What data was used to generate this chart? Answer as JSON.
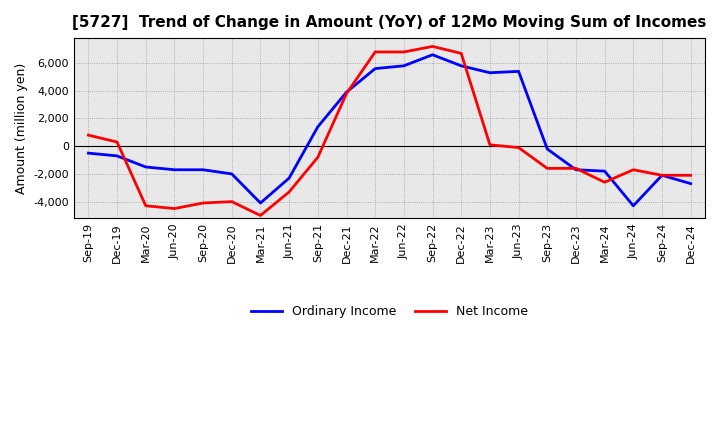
{
  "title": "[5727]  Trend of Change in Amount (YoY) of 12Mo Moving Sum of Incomes",
  "ylabel": "Amount (million yen)",
  "labels": [
    "Sep-19",
    "Dec-19",
    "Mar-20",
    "Jun-20",
    "Sep-20",
    "Dec-20",
    "Mar-21",
    "Jun-21",
    "Sep-21",
    "Dec-21",
    "Mar-22",
    "Jun-22",
    "Sep-22",
    "Dec-22",
    "Mar-23",
    "Jun-23",
    "Sep-23",
    "Dec-23",
    "Mar-24",
    "Jun-24",
    "Sep-24",
    "Dec-24"
  ],
  "ordinary_income": [
    -500,
    -700,
    -1500,
    -1700,
    -1700,
    -2000,
    -4100,
    -2300,
    1400,
    3900,
    5600,
    5800,
    6600,
    5800,
    5300,
    5400,
    -200,
    -1700,
    -1800,
    -4300,
    -2100,
    -2700
  ],
  "net_income": [
    800,
    300,
    -4300,
    -4500,
    -4100,
    -4000,
    -5000,
    -3300,
    -800,
    3800,
    6800,
    6800,
    7200,
    6700,
    100,
    -100,
    -1600,
    -1600,
    -2600,
    -1700,
    -2100,
    -2100
  ],
  "ordinary_color": "#0000FF",
  "net_color": "#FF0000",
  "background_color": "#FFFFFF",
  "plot_bg_color": "#E8E8E8",
  "grid_color": "#888888",
  "ylim": [
    -5200,
    7800
  ],
  "yticks": [
    -4000,
    -2000,
    0,
    2000,
    4000,
    6000
  ],
  "legend_ordinary": "Ordinary Income",
  "legend_net": "Net Income",
  "title_fontsize": 11,
  "axis_fontsize": 8,
  "ylabel_fontsize": 9,
  "legend_fontsize": 9,
  "line_width": 2.0
}
